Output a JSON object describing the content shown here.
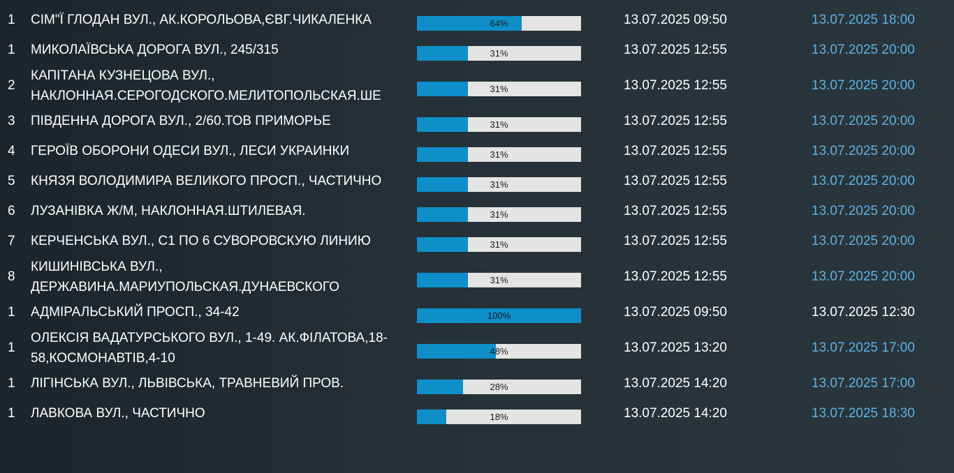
{
  "rows": [
    {
      "queue": "1",
      "address": [
        "СІМ\"Ї ГЛОДАН ВУЛ., АК.КОРОЛЬОВА,ЄВГ.ЧИКАЛЕНКА"
      ],
      "progress": 64,
      "progress_label": "64%",
      "start": "13.07.2025 09:50",
      "end": "13.07.2025 18:00",
      "end_status": "pending"
    },
    {
      "queue": "1",
      "address": [
        "МИКОЛАЇВСЬКА ДОРОГА ВУЛ., 245/315"
      ],
      "progress": 31,
      "progress_label": "31%",
      "start": "13.07.2025 12:55",
      "end": "13.07.2025 20:00",
      "end_status": "pending"
    },
    {
      "queue": "2",
      "address": [
        "КАПІТАНА КУЗНЕЦОВА ВУЛ.,",
        "НАКЛОННАЯ.СЕРОГОДСКОГО.МЕЛИТОПОЛЬСКАЯ.ШЕ"
      ],
      "progress": 31,
      "progress_label": "31%",
      "start": "13.07.2025 12:55",
      "end": "13.07.2025 20:00",
      "end_status": "pending"
    },
    {
      "queue": "3",
      "address": [
        "ПІВДЕННА ДОРОГА ВУЛ., 2/60.ТОВ ПРИМОРЬЕ"
      ],
      "progress": 31,
      "progress_label": "31%",
      "start": "13.07.2025 12:55",
      "end": "13.07.2025 20:00",
      "end_status": "pending"
    },
    {
      "queue": "4",
      "address": [
        "ГЕРОЇВ ОБОРОНИ ОДЕСИ ВУЛ., ЛЕСИ УКРАИНКИ"
      ],
      "progress": 31,
      "progress_label": "31%",
      "start": "13.07.2025 12:55",
      "end": "13.07.2025 20:00",
      "end_status": "pending"
    },
    {
      "queue": "5",
      "address": [
        "КНЯЗЯ ВОЛОДИМИРА ВЕЛИКОГО ПРОСП., ЧАСТИЧНО"
      ],
      "progress": 31,
      "progress_label": "31%",
      "start": "13.07.2025 12:55",
      "end": "13.07.2025 20:00",
      "end_status": "pending"
    },
    {
      "queue": "6",
      "address": [
        "ЛУЗАНІВКА Ж/М, НАКЛОННАЯ.ШТИЛЕВАЯ."
      ],
      "progress": 31,
      "progress_label": "31%",
      "start": "13.07.2025 12:55",
      "end": "13.07.2025 20:00",
      "end_status": "pending"
    },
    {
      "queue": "7",
      "address": [
        "КЕРЧЕНСЬКА ВУЛ., С1 ПО 6 СУВОРОВСКУЮ ЛИНИЮ"
      ],
      "progress": 31,
      "progress_label": "31%",
      "start": "13.07.2025 12:55",
      "end": "13.07.2025 20:00",
      "end_status": "pending"
    },
    {
      "queue": "8",
      "address": [
        "КИШИНІВСЬКА ВУЛ.,",
        "ДЕРЖАВИНА.МАРИУПОЛЬСКАЯ.ДУНАЕВСКОГО"
      ],
      "progress": 31,
      "progress_label": "31%",
      "start": "13.07.2025 12:55",
      "end": "13.07.2025 20:00",
      "end_status": "pending"
    },
    {
      "queue": "1",
      "address": [
        "АДМІРАЛЬСЬКИЙ ПРОСП., 34-42"
      ],
      "progress": 100,
      "progress_label": "100%",
      "start": "13.07.2025 09:50",
      "end": "13.07.2025 12:30",
      "end_status": "done"
    },
    {
      "queue": "1",
      "address": [
        "ОЛЕКСІЯ ВАДАТУРСЬКОГО ВУЛ., 1-49. АК.ФІЛАТОВА,18-",
        "58,КОСМОНАВТІВ,4-10"
      ],
      "progress": 48,
      "progress_label": "48%",
      "start": "13.07.2025 13:20",
      "end": "13.07.2025 17:00",
      "end_status": "pending"
    },
    {
      "queue": "1",
      "address": [
        "ЛІГІНСЬКА ВУЛ., ЛЬВІВСЬКА, ТРАВНЕВИЙ ПРОВ."
      ],
      "progress": 28,
      "progress_label": "28%",
      "start": "13.07.2025 14:20",
      "end": "13.07.2025 17:00",
      "end_status": "pending"
    },
    {
      "queue": "1",
      "address": [
        "ЛАВКОВА ВУЛ., ЧАСТИЧНО"
      ],
      "progress": 18,
      "progress_label": "18%",
      "start": "13.07.2025 14:20",
      "end": "13.07.2025 18:30",
      "end_status": "pending"
    }
  ],
  "colors": {
    "bar_fill": "#0e8fc9",
    "bar_track": "#e4e4e4",
    "end_pending": "#5fb0e3",
    "end_done": "#ffffff"
  }
}
